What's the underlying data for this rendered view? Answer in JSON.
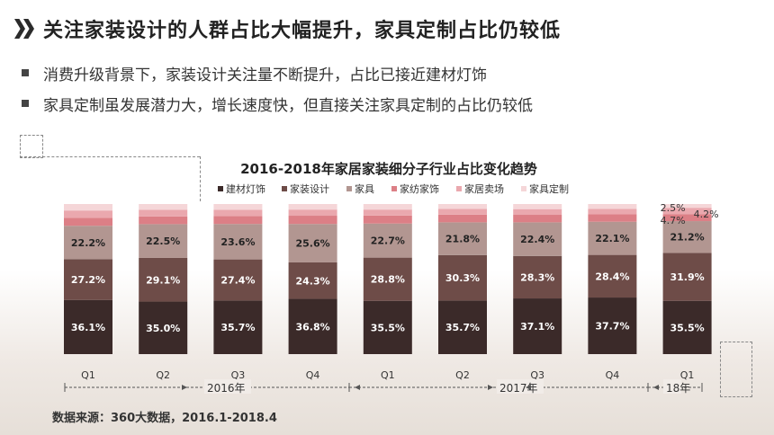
{
  "header": {
    "title": "关注家装设计的人群占比大幅提升，家具定制占比仍较低",
    "icon": "double-chevron-icon"
  },
  "bullets": [
    "消费升级背景下，家装设计关注量不断提升，占比已接近建材灯饰",
    "家具定制虽发展潜力大，增长速度快，但直接关注家具定制的占比仍较低"
  ],
  "source": "数据来源：360大数据，2016.1-2018.4",
  "chart_data": {
    "type": "bar",
    "stacked": true,
    "title": "2016-2018年家居家装细分子行业占比变化趋势",
    "categories": [
      "Q1",
      "Q2",
      "Q3",
      "Q4",
      "Q1",
      "Q2",
      "Q3",
      "Q4",
      "Q1"
    ],
    "year_groups": [
      {
        "label": "2016年",
        "start": 0,
        "end": 3
      },
      {
        "label": "2017年",
        "start": 4,
        "end": 7
      },
      {
        "label": "18年",
        "start": 8,
        "end": 8
      }
    ],
    "ylim": [
      0,
      100
    ],
    "legend_position": "top",
    "series": [
      {
        "name": "建材灯饰",
        "color": "#3b2a29",
        "values": [
          36.1,
          35.0,
          35.7,
          36.8,
          35.5,
          35.7,
          37.1,
          37.7,
          35.5
        ],
        "labels": [
          "36.1%",
          "35.0%",
          "35.7%",
          "36.8%",
          "35.5%",
          "35.7%",
          "37.1%",
          "37.7%",
          "35.5%"
        ]
      },
      {
        "name": "家装设计",
        "color": "#6e4c48",
        "values": [
          27.2,
          29.1,
          27.4,
          24.3,
          28.8,
          30.3,
          28.3,
          28.4,
          31.9
        ],
        "labels": [
          "27.2%",
          "29.1%",
          "27.4%",
          "24.3%",
          "28.8%",
          "30.3%",
          "28.3%",
          "28.4%",
          "31.9%"
        ]
      },
      {
        "name": "家具",
        "color": "#b29691",
        "values": [
          22.2,
          22.5,
          23.6,
          25.6,
          22.7,
          21.8,
          22.4,
          22.1,
          21.2
        ],
        "labels": [
          "22.2%",
          "22.5%",
          "23.6%",
          "25.6%",
          "22.7%",
          "21.8%",
          "22.4%",
          "22.1%",
          "21.2%"
        ]
      },
      {
        "name": "家纺家饰",
        "color": "#dc7f86",
        "values": [
          5.2,
          5.1,
          5.3,
          5.5,
          5.3,
          5.1,
          5.0,
          4.9,
          4.7
        ],
        "labels": [
          "",
          "",
          "",
          "",
          "",
          "",
          "",
          "",
          "4.7%"
        ]
      },
      {
        "name": "家居卖场",
        "color": "#eaa8ae",
        "values": [
          5.0,
          4.5,
          4.2,
          4.1,
          4.0,
          3.9,
          3.8,
          3.6,
          4.2
        ],
        "labels": [
          "",
          "",
          "",
          "",
          "",
          "",
          "",
          "",
          "4.2%"
        ]
      },
      {
        "name": "家具定制",
        "color": "#f5d6d8",
        "values": [
          4.3,
          3.8,
          3.8,
          3.7,
          3.7,
          3.2,
          3.4,
          3.3,
          2.5
        ],
        "labels": [
          "",
          "",
          "",
          "",
          "",
          "",
          "",
          "",
          "2.5%"
        ]
      }
    ]
  }
}
